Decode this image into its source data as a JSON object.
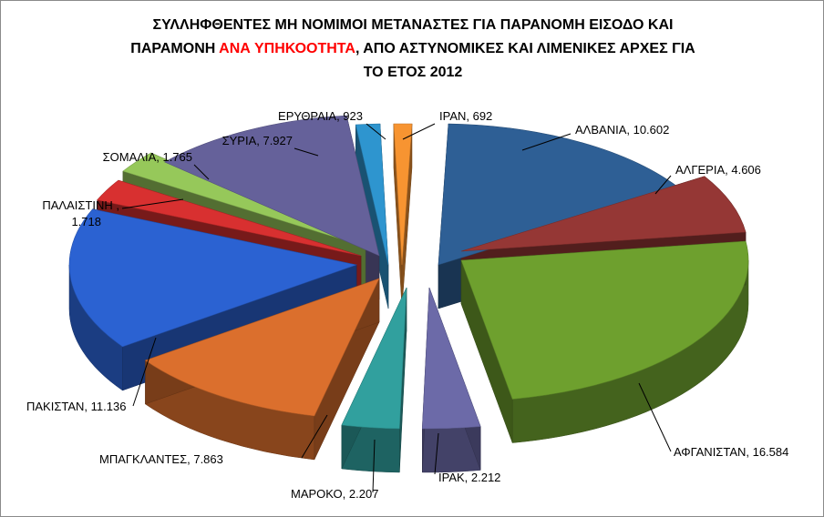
{
  "chart_data": {
    "type": "pie",
    "title_parts": [
      "ΣΥΛΛΗΦΘΕΝΤΕΣ ΜΗ ΝΟΜΙΜΟΙ ΜΕΤΑΝΑΣΤΕΣ ΓΙΑ ΠΑΡΑΝΟΜΗ ΕΙΣΟΔΟ ΚΑΙ",
      "ΠΑΡΑΜΟΝΗ ",
      "ΑΝΑ ΥΠΗΚΟΟΤΗΤΑ",
      ", ΑΠΟ ΑΣΤΥΝΟΜΙΚΕΣ ΚΑΙ ΛΙΜΕΝΙΚΕΣ ΑΡΧΕΣ ΓΙΑ",
      "ΤΟ ΕΤΟΣ 2012"
    ],
    "title_highlight_color": "#ff0000",
    "exploded": true,
    "slices": [
      {
        "category": "ΑΛΒΑΝΙΑ",
        "value": 10602,
        "label": "ΑΛΒΑΝΙΑ, 10.602",
        "color": "#2e5f95"
      },
      {
        "category": "ΑΛΓΕΡΙΑ",
        "value": 4606,
        "label": "ΑΛΓΕΡΙΑ, 4.606",
        "color": "#953735"
      },
      {
        "category": "ΑΦΓΑΝΙΣΤΑΝ",
        "value": 16584,
        "label": "ΑΦΓΑΝΙΣΤΑΝ, 16.584",
        "color": "#6ea02e"
      },
      {
        "category": "ΙΡΑΚ",
        "value": 2212,
        "label": "ΙΡΑΚ, 2.212",
        "color": "#6c6aa8"
      },
      {
        "category": "ΜΑΡΟΚΟ",
        "value": 2207,
        "label": "ΜΑΡΟΚΟ, 2.207",
        "color": "#31a09e"
      },
      {
        "category": "ΜΠΑΓΚΛΑΝΤΕΣ",
        "value": 7863,
        "label": "ΜΠΑΓΚΛΑΝΤΕΣ, 7.863",
        "color": "#db6f2d"
      },
      {
        "category": "ΠΑΚΙΣΤΑΝ",
        "value": 11136,
        "label": "ΠΑΚΙΣΤΑΝ, 11.136",
        "color": "#2b62d2"
      },
      {
        "category": "ΠΑΛΑΙΣΤΙΝΗ",
        "value": 1718,
        "label": "ΠΑΛΑΙΣΤΙΝΗ ,\n1.718",
        "color": "#d83030"
      },
      {
        "category": "ΣΟΜΑΛΙΑ",
        "value": 1765,
        "label": "ΣΟΜΑΛΙΑ, 1.765",
        "color": "#96c85a"
      },
      {
        "category": "ΣΥΡΙΑ",
        "value": 7927,
        "label": "ΣΥΡΙΑ, 7.927",
        "color": "#65619a"
      },
      {
        "category": "ΕΡΥΘΡΑΙΑ",
        "value": 923,
        "label": "ΕΡΥΘΡΑΙΑ, 923",
        "color": "#2e95cf"
      },
      {
        "category": "ΙΡΑΝ",
        "value": 692,
        "label": "ΙΡΑΝ, 692",
        "color": "#f79431"
      }
    ]
  }
}
